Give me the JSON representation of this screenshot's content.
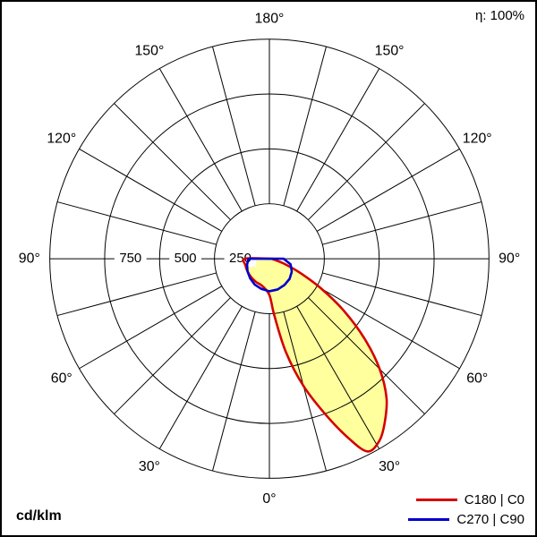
{
  "header": {
    "efficiency_label": "η: 100%"
  },
  "footer": {
    "unit_label": "cd/klm"
  },
  "legend": [
    {
      "label": "C180 | C0",
      "color": "#d40000"
    },
    {
      "label": "C270 | C90",
      "color": "#0000cc"
    }
  ],
  "chart_data": {
    "type": "polar",
    "subtype": "luminous-intensity-distribution",
    "unit": "cd/klm",
    "efficiency": "100%",
    "radial_axis": {
      "ticks": [
        250,
        500,
        750
      ],
      "tick_labels": [
        "250",
        "500",
        "750"
      ],
      "max": 1000
    },
    "angle_labels": [
      "0°",
      "30°",
      "60°",
      "90°",
      "120°",
      "150°",
      "180°"
    ],
    "angle_label_step_deg": 30,
    "grid_spoke_step_deg": 15,
    "grid": "on",
    "series": [
      {
        "name": "C180 | C0",
        "color": "#d40000",
        "fill": "#ffff9e",
        "smooth": true,
        "points": [
          [
            -90,
            110
          ],
          [
            -75,
            113
          ],
          [
            -60,
            115
          ],
          [
            -45,
            118
          ],
          [
            -30,
            122
          ],
          [
            -15,
            128
          ],
          [
            0,
            165
          ],
          [
            5,
            260
          ],
          [
            10,
            430
          ],
          [
            15,
            600
          ],
          [
            20,
            760
          ],
          [
            24,
            900
          ],
          [
            27,
            985
          ],
          [
            31,
            970
          ],
          [
            35,
            915
          ],
          [
            40,
            830
          ],
          [
            45,
            710
          ],
          [
            50,
            565
          ],
          [
            55,
            415
          ],
          [
            60,
            275
          ],
          [
            65,
            160
          ],
          [
            70,
            85
          ],
          [
            75,
            40
          ],
          [
            82,
            15
          ],
          [
            90,
            6
          ]
        ]
      },
      {
        "name": "C270 | C90",
        "color": "#0000cc",
        "fill": "none",
        "smooth": false,
        "points": [
          [
            -90,
            95
          ],
          [
            -75,
            105
          ],
          [
            -60,
            115
          ],
          [
            -45,
            125
          ],
          [
            -30,
            135
          ],
          [
            -15,
            142
          ],
          [
            0,
            148
          ],
          [
            15,
            145
          ],
          [
            30,
            138
          ],
          [
            45,
            130
          ],
          [
            60,
            118
          ],
          [
            75,
            100
          ],
          [
            90,
            65
          ]
        ]
      }
    ]
  }
}
